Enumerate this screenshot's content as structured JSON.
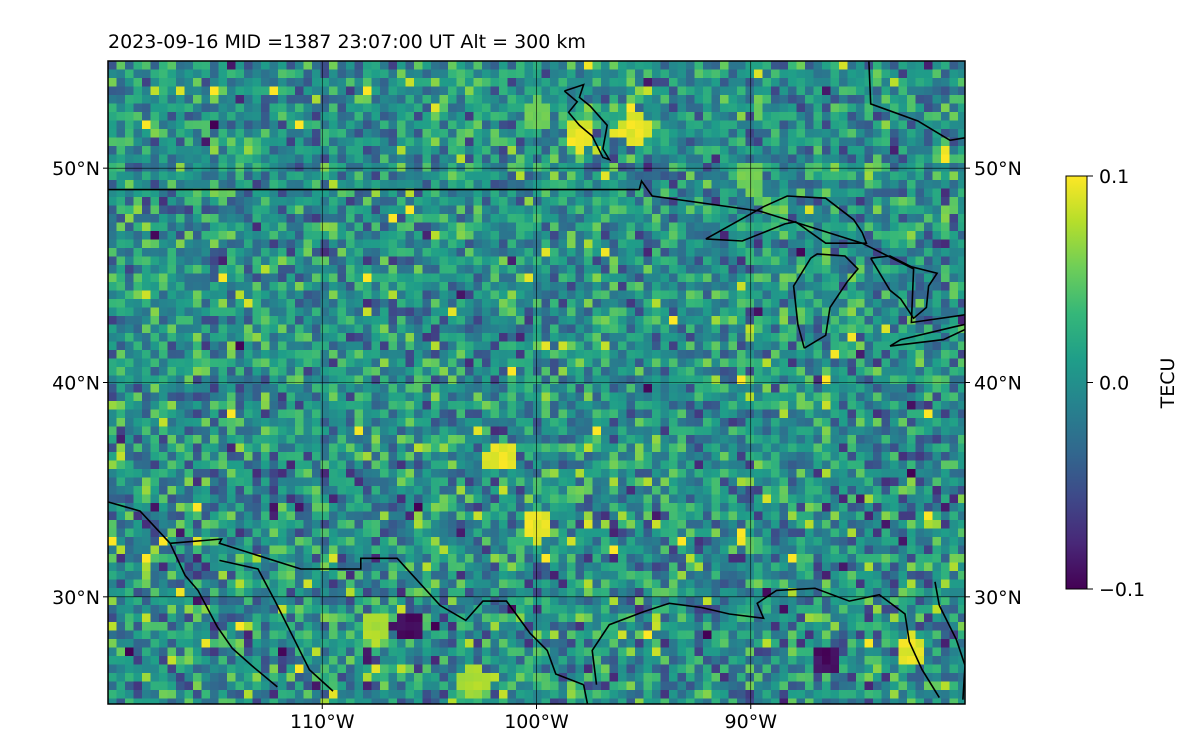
{
  "title": "2023-09-16  MID =1387    23:07:00  UT  Alt = 300 km",
  "chart_data": {
    "type": "heatmap",
    "title": "2023-09-16  MID =1387    23:07:00  UT  Alt = 300 km",
    "map_extent": {
      "lon": [
        -120,
        -80
      ],
      "lat": [
        25,
        55
      ]
    },
    "x_ticks": [
      {
        "value": -110,
        "label": "110°W"
      },
      {
        "value": -100,
        "label": "100°W"
      },
      {
        "value": -90,
        "label": "90°W"
      }
    ],
    "y_ticks": [
      {
        "value": 30,
        "label": "30°N"
      },
      {
        "value": 40,
        "label": "40°N"
      },
      {
        "value": 50,
        "label": "50°N"
      }
    ],
    "grid": true,
    "colorbar": {
      "label": "TECU",
      "colormap": "viridis",
      "range": [
        -0.1,
        0.1
      ],
      "ticks": [
        {
          "value": 0.1,
          "label": "0.1"
        },
        {
          "value": 0.0,
          "label": "0.0"
        },
        {
          "value": -0.1,
          "label": "−0.1"
        }
      ]
    },
    "notable_values": [
      {
        "lon": -101.7,
        "lat": 36.5,
        "value": 0.1,
        "note": "yellow cluster"
      },
      {
        "lon": -90.0,
        "lat": 49.5,
        "value": 0.06
      },
      {
        "lon": -95.5,
        "lat": 51.8,
        "value": 0.1
      },
      {
        "lon": -98.0,
        "lat": 51.5,
        "value": 0.1
      },
      {
        "lon": -100.0,
        "lat": 52.5,
        "value": 0.06
      },
      {
        "lon": -106.0,
        "lat": 28.6,
        "value": -0.1,
        "note": "dark spot"
      },
      {
        "lon": -86.5,
        "lat": 27.0,
        "value": -0.1,
        "note": "dark spot"
      },
      {
        "lon": -82.5,
        "lat": 27.5,
        "value": 0.1,
        "note": "bright patch"
      },
      {
        "lon": -100.0,
        "lat": 33.3,
        "value": 0.1
      },
      {
        "lon": -103.0,
        "lat": 26.0,
        "value": 0.08
      },
      {
        "lon": -107.5,
        "lat": 28.5,
        "value": 0.08
      }
    ]
  },
  "palette": {
    "viridis": [
      "#440154",
      "#482878",
      "#3e4989",
      "#31688e",
      "#26828e",
      "#1f9e89",
      "#35b779",
      "#6ece58",
      "#b5de2b",
      "#fde725"
    ]
  }
}
